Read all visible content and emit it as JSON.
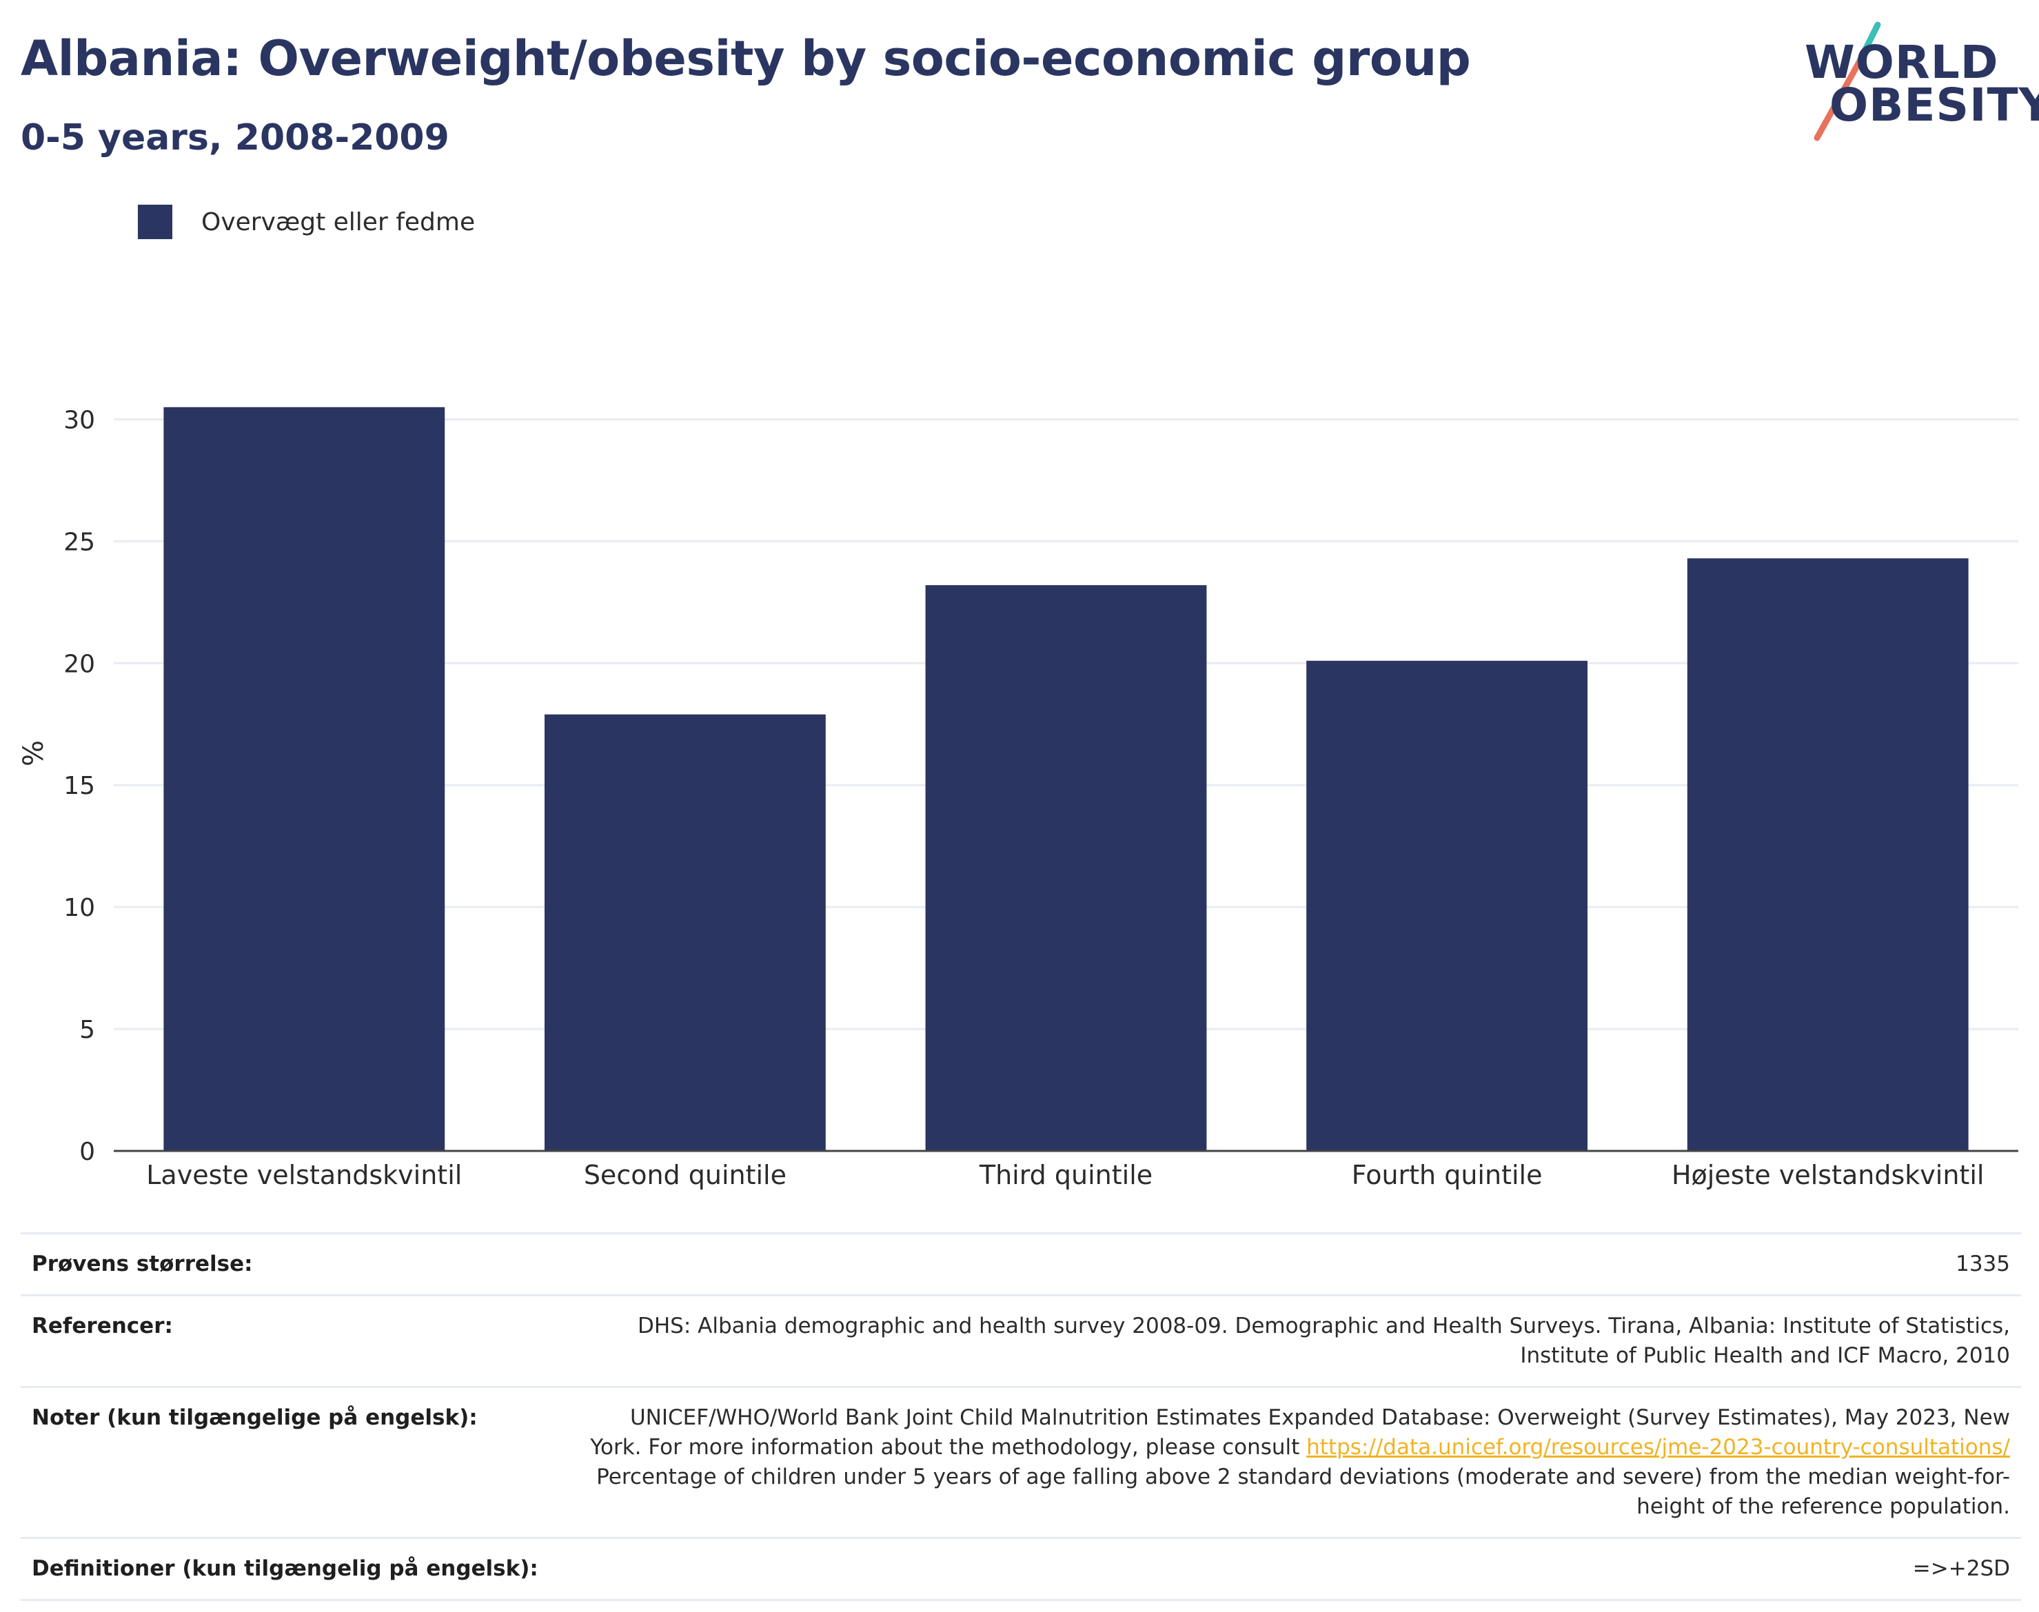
{
  "header": {
    "title": "Albania: Overweight/obesity by socio-economic group",
    "subtitle": "0-5 years, 2008-2009"
  },
  "logo": {
    "line1": "WORLD",
    "line2": "OBESITY",
    "accent_teal": "#3bbfb6",
    "accent_coral": "#e8735c"
  },
  "legend": {
    "label": "Overvægt eller fedme",
    "color": "#2a3561"
  },
  "chart_data": {
    "type": "bar",
    "categories": [
      "Laveste velstandskvintil",
      "Second quintile",
      "Third quintile",
      "Fourth quintile",
      "Højeste velstandskvintil"
    ],
    "series": [
      {
        "name": "Overvægt eller fedme",
        "values": [
          30.5,
          17.9,
          23.2,
          20.1,
          24.3
        ],
        "color": "#2a3561"
      }
    ],
    "ylabel": "%",
    "ylim": [
      0,
      32.5
    ],
    "yticks": [
      0,
      5,
      10,
      15,
      20,
      25,
      30
    ],
    "grid": true
  },
  "info": {
    "sample_size": {
      "label": "Prøvens størrelse:",
      "value": "1335"
    },
    "references": {
      "label": "Referencer:",
      "line1": "DHS: Albania demographic and health survey 2008-09. Demographic and Health Surveys. Tirana, Albania: Institute of Statistics,",
      "line2": "Institute of Public Health and ICF Macro, 2010"
    },
    "notes": {
      "label": "Noter (kun tilgængelige på engelsk):",
      "line1": "UNICEF/WHO/World Bank Joint Child Malnutrition Estimates Expanded Database: Overweight (Survey Estimates), May 2023, New",
      "line2_pre": "York. For more information about the methodology, please consult ",
      "link": "https://data.unicef.org/resources/jme-2023-country-consultations/",
      "line3": "Percentage of children under 5 years of age falling above 2 standard deviations (moderate and severe) from the median weight-for-",
      "line4": "height of the reference population."
    },
    "definitions": {
      "label": "Definitioner (kun tilgængelig på engelsk):",
      "value": "=>+2SD"
    }
  }
}
